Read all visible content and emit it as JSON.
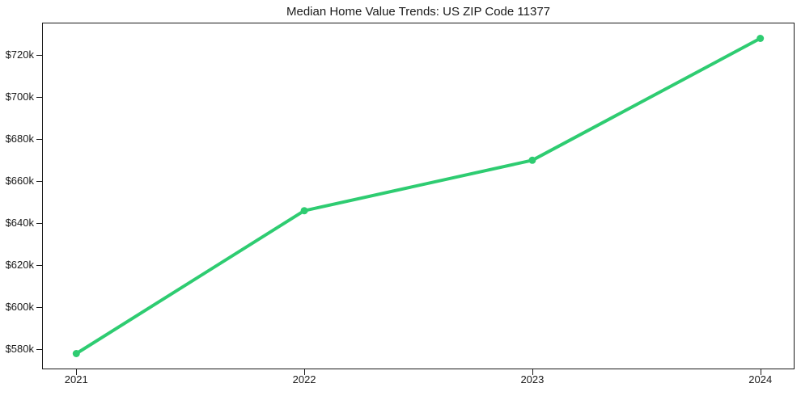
{
  "chart_data": {
    "type": "line",
    "title": "Median Home Value Trends: US ZIP Code 11377",
    "xlabel": "",
    "ylabel": "",
    "x": [
      2021,
      2022,
      2023,
      2024
    ],
    "values": [
      578000,
      646000,
      670000,
      728000
    ],
    "x_tick_labels": [
      "2021",
      "2022",
      "2023",
      "2024"
    ],
    "y_tick_values": [
      580000,
      600000,
      620000,
      640000,
      660000,
      680000,
      700000,
      720000
    ],
    "y_tick_labels": [
      "$580k",
      "$600k",
      "$620k",
      "$640k",
      "$660k",
      "$680k",
      "$700k",
      "$720k"
    ],
    "xlim": [
      2020.85,
      2024.15
    ],
    "ylim": [
      570500,
      735500
    ],
    "grid": false,
    "legend": "none",
    "line_color": "#2ecc71",
    "marker_color": "#2ecc71",
    "marker": "circle",
    "axis_color": "#1a1a1a",
    "text_color": "#1a1a1a",
    "background_color": "#ffffff"
  }
}
